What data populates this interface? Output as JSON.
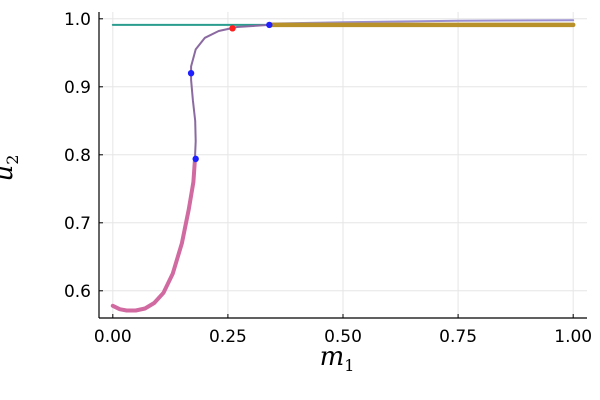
{
  "chart_data": {
    "type": "line",
    "title": "",
    "xlabel": {
      "base": "m",
      "sub": "1"
    },
    "ylabel": {
      "base": "u",
      "sub": "2"
    },
    "xlim": [
      -0.03,
      1.03
    ],
    "ylim": [
      0.56,
      1.01
    ],
    "xticks": [
      0.0,
      0.25,
      0.5,
      0.75,
      1.0
    ],
    "xtick_labels": [
      "0.00",
      "0.25",
      "0.50",
      "0.75",
      "1.00"
    ],
    "yticks": [
      0.6,
      0.7,
      0.8,
      0.9,
      1.0
    ],
    "ytick_labels": [
      "0.6",
      "0.7",
      "0.8",
      "0.9",
      "1.0"
    ],
    "grid": true,
    "legend": "none",
    "series": [
      {
        "color": "#2a9d8f",
        "width": 2,
        "points": [
          [
            0.0,
            0.991
          ],
          [
            0.34,
            0.991
          ]
        ]
      },
      {
        "color": "#9a8fd0",
        "width": 2,
        "points": [
          [
            0.34,
            0.993
          ],
          [
            0.5,
            0.995
          ],
          [
            0.75,
            0.997
          ],
          [
            1.0,
            0.998
          ]
        ]
      },
      {
        "color": "#d06aa0",
        "width": 4,
        "points": [
          [
            0.0,
            0.578
          ],
          [
            0.015,
            0.573
          ],
          [
            0.03,
            0.571
          ],
          [
            0.05,
            0.571
          ],
          [
            0.07,
            0.574
          ],
          [
            0.09,
            0.582
          ],
          [
            0.11,
            0.597
          ],
          [
            0.13,
            0.625
          ],
          [
            0.15,
            0.67
          ],
          [
            0.165,
            0.72
          ],
          [
            0.175,
            0.76
          ],
          [
            0.178,
            0.79
          ]
        ]
      },
      {
        "color": "#8a6aa0",
        "width": 2,
        "points": [
          [
            0.178,
            0.79
          ],
          [
            0.18,
            0.82
          ],
          [
            0.179,
            0.85
          ],
          [
            0.174,
            0.88
          ],
          [
            0.17,
            0.91
          ],
          [
            0.17,
            0.93
          ],
          [
            0.18,
            0.955
          ],
          [
            0.2,
            0.972
          ],
          [
            0.23,
            0.982
          ],
          [
            0.27,
            0.988
          ],
          [
            0.34,
            0.991
          ]
        ]
      },
      {
        "color": "#b8912a",
        "width": 4.5,
        "points": [
          [
            0.34,
            0.991
          ],
          [
            0.5,
            0.991
          ],
          [
            0.75,
            0.991
          ],
          [
            1.0,
            0.991
          ]
        ]
      }
    ],
    "markers": [
      {
        "x": 0.18,
        "y": 0.794,
        "color": "#1f1fff"
      },
      {
        "x": 0.17,
        "y": 0.92,
        "color": "#1f1fff"
      },
      {
        "x": 0.34,
        "y": 0.991,
        "color": "#1f1fff"
      },
      {
        "x": 0.26,
        "y": 0.986,
        "color": "#ff1f1f"
      }
    ]
  }
}
